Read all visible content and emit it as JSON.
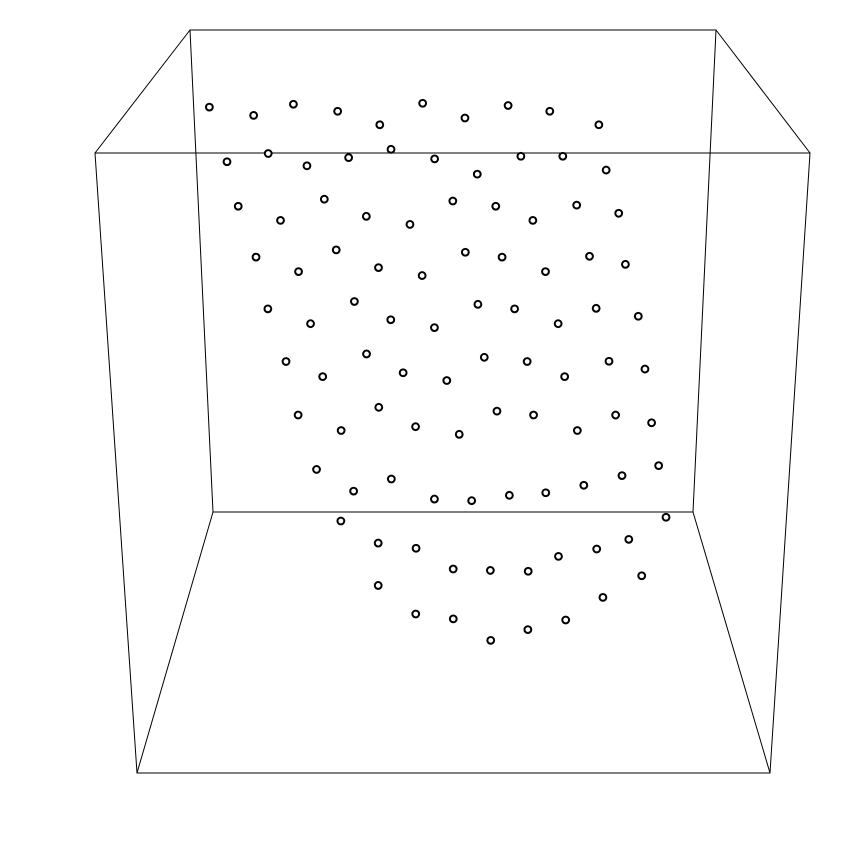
{
  "chart_data": {
    "type": "scatter3d",
    "color": "#000000",
    "xlim": [
      0,
      1
    ],
    "ylim": [
      0,
      1
    ],
    "zlim": [
      0,
      1
    ],
    "x": [
      0.1,
      0.17,
      0.24,
      0.31,
      0.38,
      0.45,
      0.52,
      0.59,
      0.66,
      0.74,
      0.13,
      0.2,
      0.26,
      0.33,
      0.4,
      0.47,
      0.54,
      0.61,
      0.68,
      0.75,
      0.15,
      0.22,
      0.29,
      0.36,
      0.43,
      0.5,
      0.57,
      0.63,
      0.7,
      0.77,
      0.18,
      0.25,
      0.31,
      0.38,
      0.45,
      0.52,
      0.58,
      0.65,
      0.72,
      0.78,
      0.2,
      0.27,
      0.34,
      0.4,
      0.47,
      0.54,
      0.6,
      0.67,
      0.73,
      0.8,
      0.23,
      0.29,
      0.36,
      0.42,
      0.49,
      0.55,
      0.62,
      0.68,
      0.75,
      0.81,
      0.25,
      0.32,
      0.38,
      0.44,
      0.51,
      0.57,
      0.63,
      0.7,
      0.76,
      0.82,
      0.28,
      0.34,
      0.4,
      0.47,
      0.53,
      0.59,
      0.65,
      0.71,
      0.77,
      0.83,
      0.32,
      0.38,
      0.44,
      0.5,
      0.56,
      0.62,
      0.67,
      0.73,
      0.78,
      0.84,
      0.38,
      0.44,
      0.5,
      0.56,
      0.62,
      0.68,
      0.74,
      0.8
    ],
    "y": [
      0.55,
      0.57,
      0.53,
      0.56,
      0.54,
      0.58,
      0.55,
      0.52,
      0.56,
      0.54,
      0.51,
      0.49,
      0.52,
      0.5,
      0.48,
      0.53,
      0.5,
      0.47,
      0.51,
      0.49,
      0.47,
      0.45,
      0.48,
      0.44,
      0.46,
      0.43,
      0.47,
      0.45,
      0.44,
      0.46,
      0.43,
      0.41,
      0.44,
      0.4,
      0.42,
      0.39,
      0.43,
      0.41,
      0.4,
      0.42,
      0.39,
      0.37,
      0.4,
      0.36,
      0.38,
      0.35,
      0.39,
      0.37,
      0.36,
      0.38,
      0.35,
      0.33,
      0.36,
      0.32,
      0.34,
      0.31,
      0.35,
      0.33,
      0.32,
      0.34,
      0.31,
      0.29,
      0.32,
      0.28,
      0.3,
      0.27,
      0.31,
      0.29,
      0.28,
      0.3,
      0.27,
      0.25,
      0.28,
      0.24,
      0.26,
      0.23,
      0.27,
      0.25,
      0.24,
      0.26,
      0.22,
      0.2,
      0.23,
      0.19,
      0.21,
      0.18,
      0.22,
      0.2,
      0.19,
      0.21,
      0.17,
      0.15,
      0.18,
      0.14,
      0.16,
      0.15,
      0.17,
      0.16
    ],
    "z": [
      0.96,
      0.94,
      0.97,
      0.95,
      0.93,
      0.96,
      0.94,
      0.97,
      0.95,
      0.93,
      0.87,
      0.89,
      0.86,
      0.88,
      0.9,
      0.87,
      0.85,
      0.89,
      0.88,
      0.86,
      0.8,
      0.78,
      0.81,
      0.79,
      0.77,
      0.82,
      0.8,
      0.78,
      0.81,
      0.79,
      0.72,
      0.7,
      0.73,
      0.71,
      0.69,
      0.74,
      0.72,
      0.7,
      0.73,
      0.71,
      0.64,
      0.62,
      0.65,
      0.63,
      0.61,
      0.66,
      0.64,
      0.62,
      0.65,
      0.63,
      0.56,
      0.54,
      0.57,
      0.55,
      0.53,
      0.58,
      0.56,
      0.54,
      0.57,
      0.55,
      0.48,
      0.46,
      0.49,
      0.47,
      0.45,
      0.5,
      0.48,
      0.46,
      0.49,
      0.47,
      0.4,
      0.37,
      0.38,
      0.36,
      0.35,
      0.37,
      0.36,
      0.38,
      0.4,
      0.41,
      0.33,
      0.3,
      0.28,
      0.26,
      0.25,
      0.26,
      0.27,
      0.29,
      0.31,
      0.34,
      0.24,
      0.2,
      0.18,
      0.16,
      0.17,
      0.19,
      0.22,
      0.26
    ]
  }
}
